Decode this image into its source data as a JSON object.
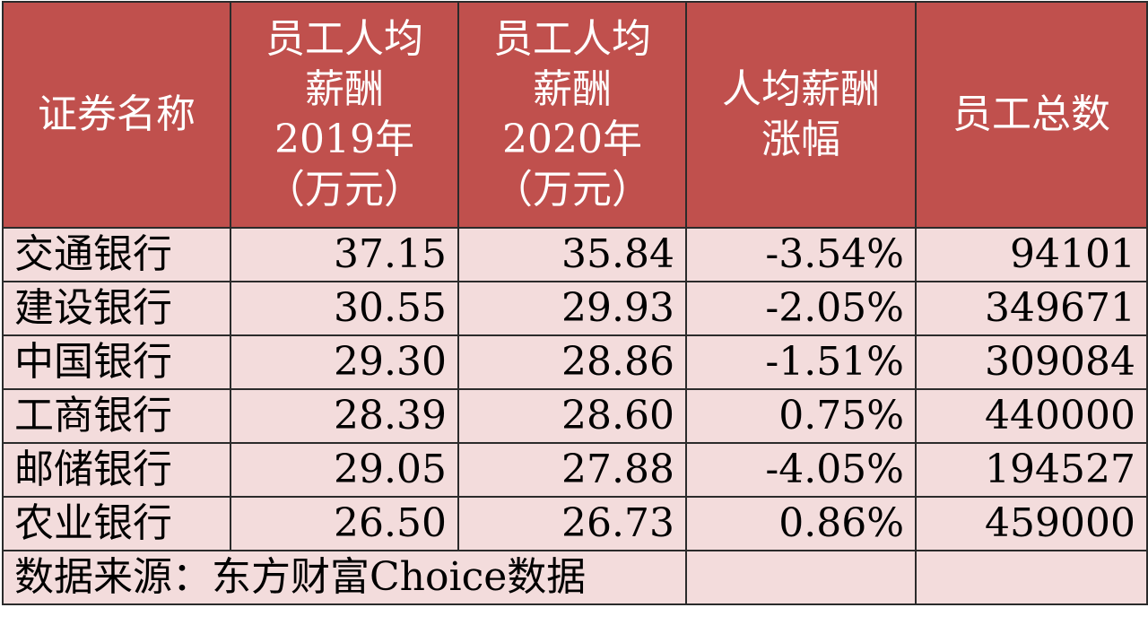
{
  "table": {
    "headers": [
      {
        "lines": [
          "证券名称"
        ]
      },
      {
        "lines": [
          "员工人均",
          "薪酬",
          "2019年",
          "（万元）"
        ]
      },
      {
        "lines": [
          "员工人均",
          "薪酬",
          "2020年",
          "（万元）"
        ]
      },
      {
        "lines": [
          "人均薪酬",
          "涨幅"
        ]
      },
      {
        "lines": [
          "员工总数"
        ]
      }
    ],
    "rows": [
      {
        "name": "交通银行",
        "pay2019": "37.15",
        "pay2020": "35.84",
        "growth": "-3.54%",
        "employees": "94101"
      },
      {
        "name": "建设银行",
        "pay2019": "30.55",
        "pay2020": "29.93",
        "growth": "-2.05%",
        "employees": "349671"
      },
      {
        "name": "中国银行",
        "pay2019": "29.30",
        "pay2020": "28.86",
        "growth": "-1.51%",
        "employees": "309084"
      },
      {
        "name": "工商银行",
        "pay2019": "28.39",
        "pay2020": "28.60",
        "growth": "0.75%",
        "employees": "440000"
      },
      {
        "name": "邮储银行",
        "pay2019": "29.05",
        "pay2020": "27.88",
        "growth": "-4.05%",
        "employees": "194527"
      },
      {
        "name": "农业银行",
        "pay2019": "26.50",
        "pay2020": "26.73",
        "growth": "0.86%",
        "employees": "459000"
      }
    ],
    "source": "数据来源：东方财富Choice数据"
  },
  "colors": {
    "header_bg": "#c0504d",
    "header_text": "#ffffff",
    "body_bg": "#f3dcdc",
    "border": "#2b2b2b"
  }
}
